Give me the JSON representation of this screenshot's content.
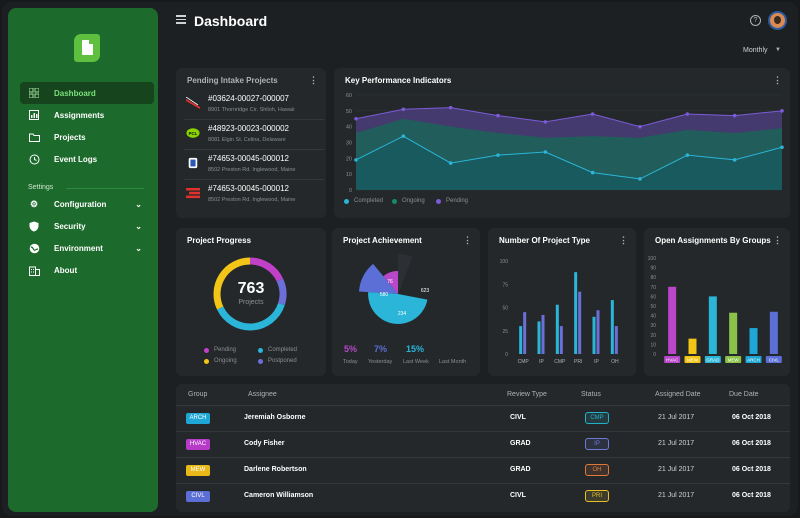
{
  "sidebar": {
    "items": [
      {
        "label": "Dashboard",
        "icon": "grid-icon"
      },
      {
        "label": "Assignments",
        "icon": "chart-icon"
      },
      {
        "label": "Projects",
        "icon": "folder-icon"
      },
      {
        "label": "Event Logs",
        "icon": "history-icon"
      }
    ],
    "section": "Settings",
    "settings": [
      {
        "label": "Configuration",
        "icon": "gear-icon"
      },
      {
        "label": "Security",
        "icon": "shield-icon"
      },
      {
        "label": "Environment",
        "icon": "globe-icon"
      },
      {
        "label": "About",
        "icon": "building-icon"
      }
    ]
  },
  "header": {
    "title": "Dashboard",
    "period": "Monthly"
  },
  "intake": {
    "title": "Pending Intake Projects",
    "items": [
      {
        "code": "#03624-00027-000007",
        "address": "8901 Thornridge Cir. Shiloh, Hawaii"
      },
      {
        "code": "#48923-00023-000002",
        "address": "8081 Elgin St. Celina, Delaware"
      },
      {
        "code": "#74653-00045-000012",
        "address": "8502 Preston Rd. Inglewood, Maine"
      },
      {
        "code": "#74653-00045-000012",
        "address": "8502 Preston Rd. Inglewood, Maine"
      }
    ]
  },
  "kpi": {
    "title": "Key Performance Indicators",
    "legend": [
      "Completed",
      "Ongoing",
      "Pending"
    ]
  },
  "progress": {
    "title": "Project Progress",
    "total": "763",
    "label": "Projects",
    "legend": [
      "Pending",
      "Completed",
      "Ongoing",
      "Postponed"
    ]
  },
  "achievement": {
    "title": "Project Achievement",
    "slices": [
      "76",
      "580",
      "234",
      "623"
    ],
    "stats": [
      {
        "value": "5%",
        "label": "Today",
        "color": "#b847c9"
      },
      {
        "value": "7%",
        "label": "Yesterday",
        "color": "#5b6fd6"
      },
      {
        "value": "15%",
        "label": "Last Week",
        "color": "#2bb5d8"
      }
    ],
    "last_label": "Last Month"
  },
  "type_chart": {
    "title": "Number Of Project Type"
  },
  "groups_chart": {
    "title": "Open Assignments By Groups"
  },
  "table": {
    "headers": [
      "Group",
      "Assignee",
      "Review Type",
      "Status",
      "Assigned Date",
      "Due Date"
    ],
    "rows": [
      {
        "group": "ARCH",
        "group_color": "#1ea7d6",
        "assignee": "Jeremiah Osborne",
        "review": "CIVL",
        "status": "CMP",
        "status_color": "#22b3c8",
        "assigned": "21 Jul 2017",
        "due": "06 Oct 2018"
      },
      {
        "group": "HVAC",
        "group_color": "#b73ac8",
        "assignee": "Cody Fisher",
        "review": "GRAD",
        "status": "IP",
        "status_color": "#6b7ad8",
        "assigned": "21 Jul 2017",
        "due": "06 Oct 2018"
      },
      {
        "group": "MEW",
        "group_color": "#e9b91a",
        "assignee": "Darlene Robertson",
        "review": "GRAD",
        "status": "OH",
        "status_color": "#e07a3a",
        "assigned": "21 Jul 2017",
        "due": "06 Oct 2018"
      },
      {
        "group": "CIVL",
        "group_color": "#5b6fd6",
        "assignee": "Cameron Williamson",
        "review": "CIVL",
        "status": "PRI",
        "status_color": "#e6c22a",
        "assigned": "21 Jul 2017",
        "due": "06 Oct 2018"
      }
    ]
  },
  "chart_data": [
    {
      "type": "area",
      "title": "Key Performance Indicators",
      "x": [
        1,
        2,
        3,
        4,
        5,
        6,
        7,
        8,
        9,
        10
      ],
      "ylim": [
        0,
        60
      ],
      "yticks": [
        0,
        10,
        20,
        30,
        40,
        50,
        60
      ],
      "series": [
        {
          "name": "Completed",
          "color": "#2bb5d8",
          "values": [
            19,
            34,
            17,
            22,
            24,
            11,
            7,
            22,
            19,
            27
          ]
        },
        {
          "name": "Ongoing",
          "color": "#178a6a",
          "values": [
            36,
            45,
            40,
            36,
            33,
            34,
            33,
            38,
            36,
            39
          ]
        },
        {
          "name": "Pending",
          "color": "#7b5cd6",
          "values": [
            45,
            51,
            52,
            47,
            43,
            48,
            40,
            48,
            47,
            50
          ]
        }
      ],
      "legend": "bottom"
    },
    {
      "type": "pie",
      "title": "Project Progress",
      "series": [
        {
          "name": "Pending",
          "color": "#c040c8",
          "value": 18
        },
        {
          "name": "Postponed",
          "color": "#6d6fd8",
          "value": 12
        },
        {
          "name": "Completed",
          "color": "#2bb5d8",
          "value": 38
        },
        {
          "name": "Ongoing",
          "color": "#f2c516",
          "value": 32
        }
      ]
    },
    {
      "type": "pie",
      "title": "Project Achievement",
      "series": [
        {
          "name": "76",
          "color": "#b847c9",
          "value": 76
        },
        {
          "name": "580",
          "color": "#5b6fd6",
          "value": 580
        },
        {
          "name": "234",
          "color": "#2bb5d8",
          "value": 234
        },
        {
          "name": "623",
          "color": "#2c3034",
          "value": 623
        }
      ]
    },
    {
      "type": "bar",
      "title": "Number Of Project Type",
      "categories": [
        "CMP",
        "IP",
        "CMP",
        "PRI",
        "IP",
        "OH"
      ],
      "ylim": [
        0,
        100
      ],
      "yticks": [
        0,
        25,
        50,
        75,
        100
      ],
      "series": [
        {
          "color": "#2bb5d8",
          "values": [
            30,
            35,
            53,
            88,
            40,
            58
          ]
        },
        {
          "color": "#6d6fd8",
          "values": [
            45,
            42,
            30,
            67,
            47,
            30
          ]
        }
      ]
    },
    {
      "type": "bar",
      "title": "Open Assignments By Groups",
      "categories": [
        "HVAC",
        "MEW",
        "GRAD",
        "MEW",
        "ARCH",
        "CIVL"
      ],
      "ylim": [
        0,
        100
      ],
      "yticks": [
        0,
        10,
        20,
        30,
        40,
        50,
        60,
        70,
        80,
        90,
        100
      ],
      "values": [
        70,
        16,
        60,
        43,
        27,
        44
      ],
      "colors": [
        "#b847c9",
        "#f2c516",
        "#2bb5d8",
        "#8bc34a",
        "#1ea7d6",
        "#5b6fd6"
      ]
    }
  ]
}
